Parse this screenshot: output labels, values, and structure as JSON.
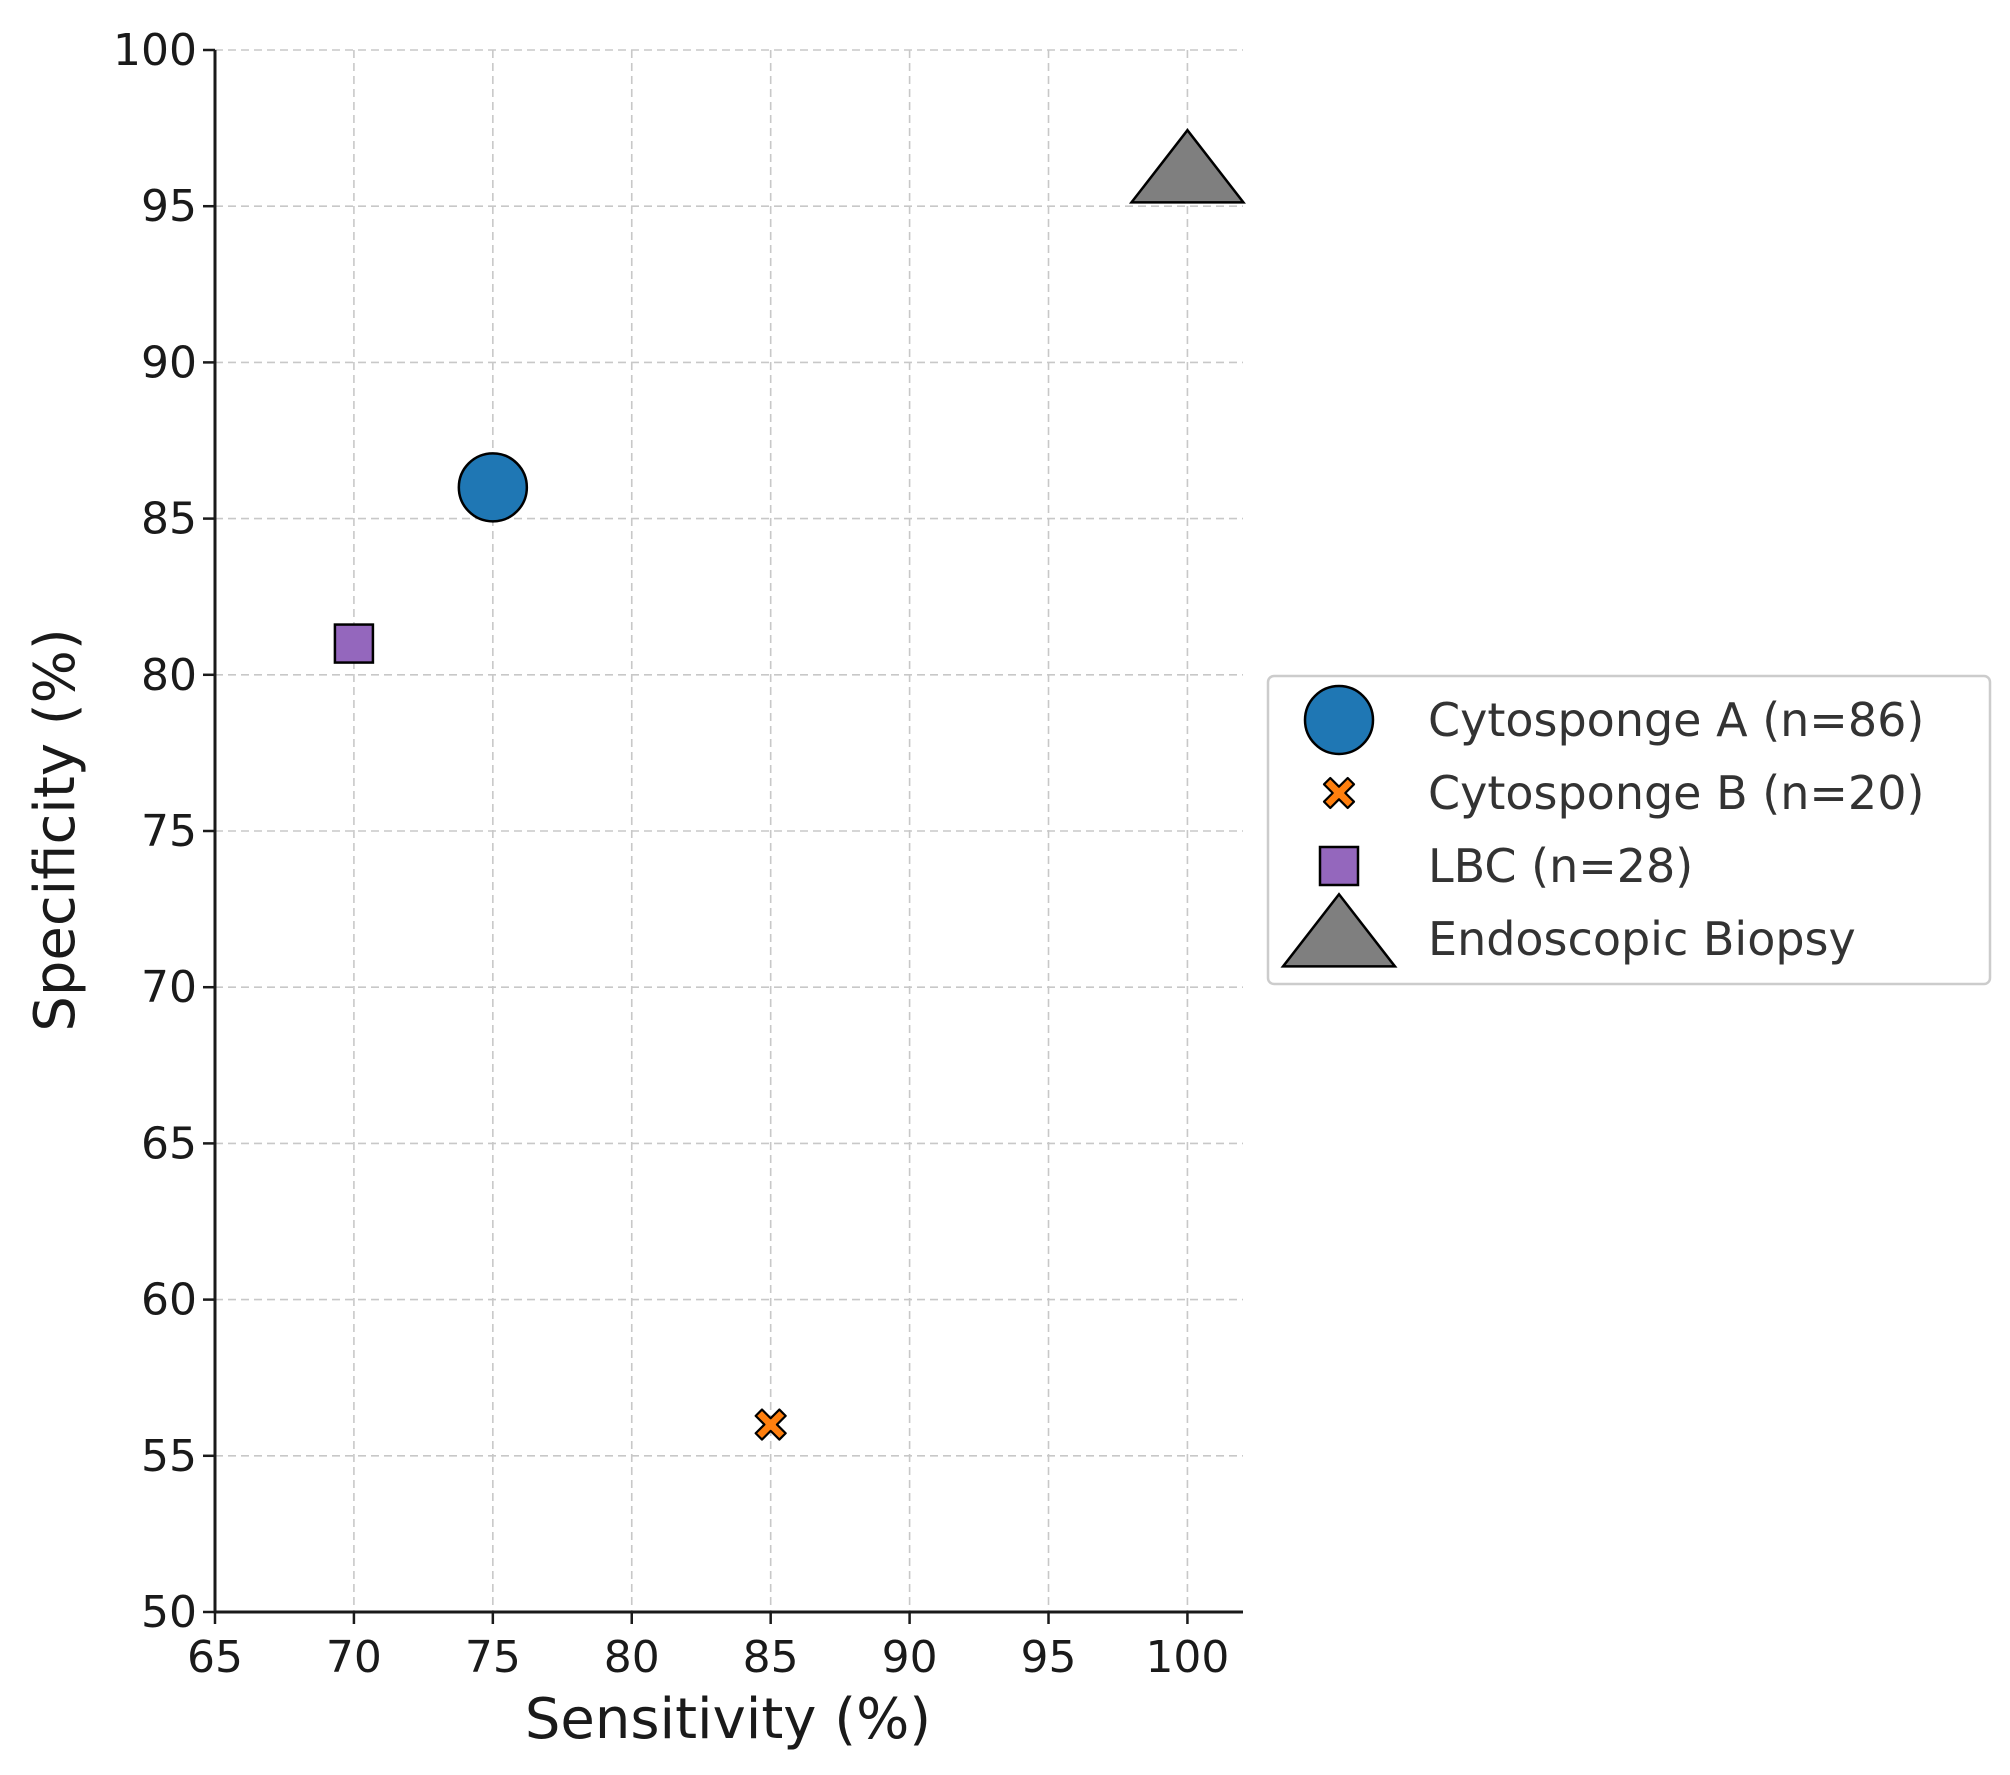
{
  "chart_data": {
    "type": "scatter",
    "title": "",
    "xlabel": "Sensitivity (%)",
    "ylabel": "Specificity (%)",
    "xlim": [
      65,
      102
    ],
    "ylim": [
      50,
      100
    ],
    "xticks": [
      65,
      70,
      75,
      80,
      85,
      90,
      95,
      100
    ],
    "yticks": [
      50,
      55,
      60,
      65,
      70,
      75,
      80,
      85,
      90,
      95,
      100
    ],
    "grid": true,
    "legend_position": "right",
    "series": [
      {
        "name": "Cytosponge A (n=86)",
        "marker": "circle",
        "color": "#1f77b4",
        "x": 75,
        "y": 86
      },
      {
        "name": "Cytosponge B (n=20)",
        "marker": "x",
        "color": "#ff7f0e",
        "x": 85,
        "y": 56
      },
      {
        "name": "LBC (n=28)",
        "marker": "square",
        "color": "#9467bd",
        "x": 70,
        "y": 81
      },
      {
        "name": "Endoscopic Biopsy",
        "marker": "triangle",
        "color": "#7f7f7f",
        "x": 100,
        "y": 96
      }
    ]
  }
}
